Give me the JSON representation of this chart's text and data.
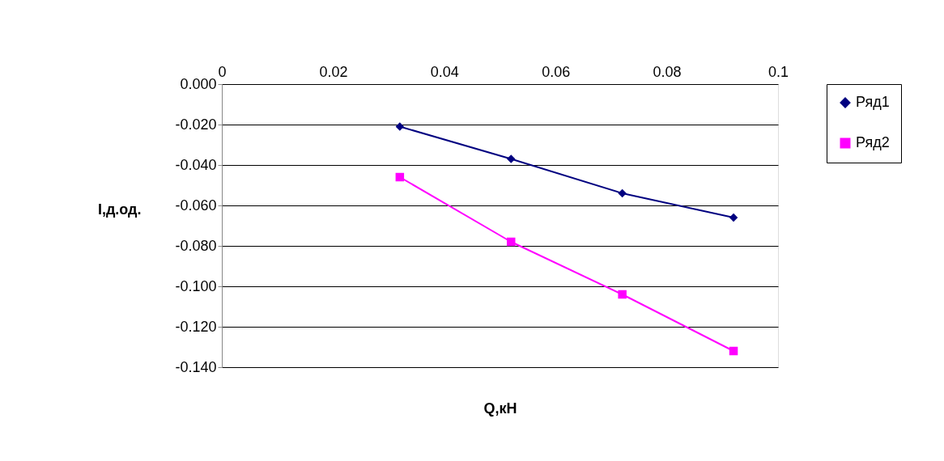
{
  "chart_data": {
    "type": "line",
    "xlabel": "Q,кН",
    "ylabel": "I,д.од.",
    "xlim": [
      0,
      0.1
    ],
    "xticks": [
      0,
      0.02,
      0.04,
      0.06,
      0.08,
      0.1
    ],
    "ylim": [
      -0.14,
      0
    ],
    "yticks": [
      {
        "value": 0,
        "label": "0.000"
      },
      {
        "value": -0.02,
        "label": "-0.020"
      },
      {
        "value": -0.04,
        "label": "-0.040"
      },
      {
        "value": -0.06,
        "label": "-0.060"
      },
      {
        "value": -0.08,
        "label": "-0.080"
      },
      {
        "value": -0.1,
        "label": "-0.100"
      },
      {
        "value": -0.12,
        "label": "-0.120"
      },
      {
        "value": -0.14,
        "label": "-0.140"
      }
    ],
    "grid": "y",
    "legend": "right",
    "series": [
      {
        "name": "Ряд1",
        "color": "#000080",
        "marker": "diamond",
        "x": [
          0.032,
          0.052,
          0.072,
          0.092
        ],
        "values": [
          -0.021,
          -0.037,
          -0.054,
          -0.066
        ]
      },
      {
        "name": "Ряд2",
        "color": "#ff00ff",
        "marker": "square",
        "x": [
          0.032,
          0.052,
          0.072,
          0.092
        ],
        "values": [
          -0.046,
          -0.078,
          -0.104,
          -0.132
        ]
      }
    ]
  }
}
